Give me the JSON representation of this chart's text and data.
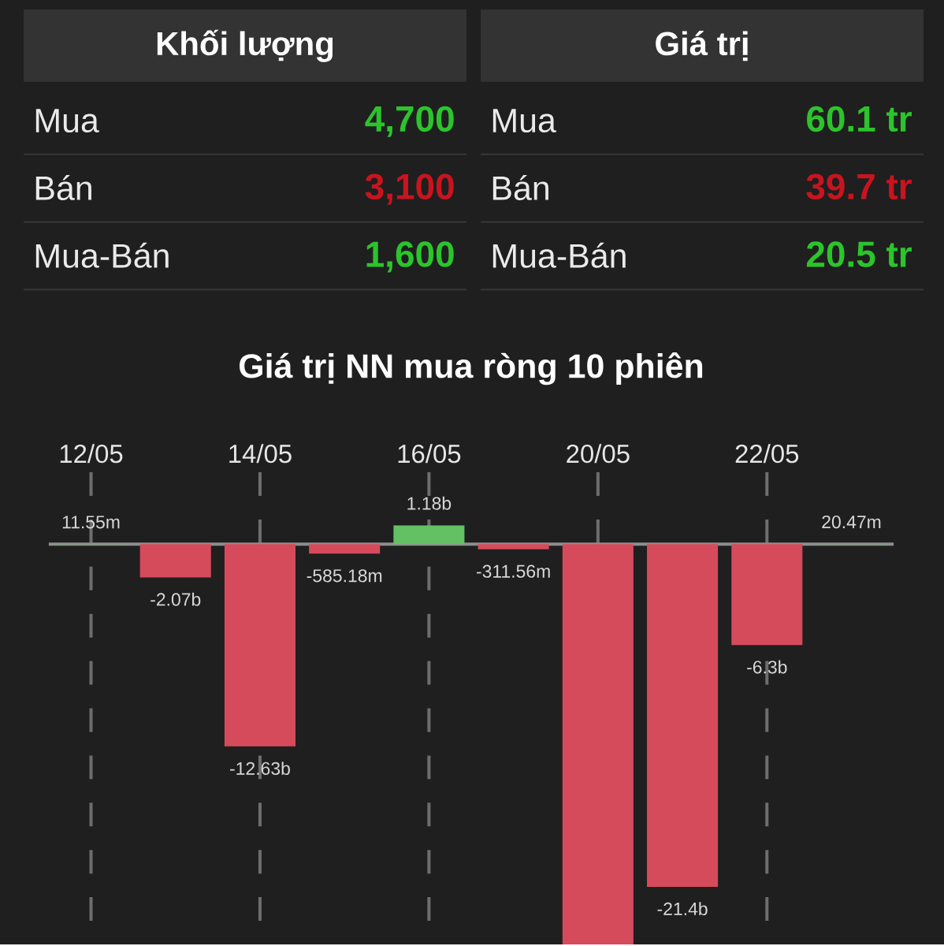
{
  "chart_data": [
    {
      "type": "other",
      "title": "Khối lượng",
      "categories": [
        "Mua",
        "Bán",
        "Mua-Bán"
      ],
      "value_labels": [
        "4,700",
        "3,100",
        "1,600"
      ],
      "colors": [
        "#2cc42c",
        "#c8141e",
        "#2cc42c"
      ]
    },
    {
      "type": "other",
      "title": "Giá trị",
      "categories": [
        "Mua",
        "Bán",
        "Mua-Bán"
      ],
      "value_labels": [
        "60.1 tr",
        "39.7 tr",
        "20.5 tr"
      ],
      "colors": [
        "#2cc42c",
        "#c8141e",
        "#2cc42c"
      ]
    },
    {
      "type": "bar",
      "title": "Giá trị NN mua ròng 10 phiên",
      "categories": [
        "12/05",
        null,
        "14/05",
        null,
        "16/05",
        null,
        "20/05",
        null,
        "22/05",
        null
      ],
      "values": [
        11550000,
        -2070000000,
        -12630000000,
        -585180000,
        1180000000,
        -311560000,
        -25000000000,
        -21400000000,
        -6300000000,
        20470000
      ],
      "colors": [
        "#63c163",
        "#d64b5c",
        "#d64b5c",
        "#d64b5c",
        "#63c163",
        "#d64b5c",
        "#d64b5c",
        "#d64b5c",
        "#d64b5c",
        "#63c163"
      ],
      "value_labels": [
        "11.55m",
        "-2.07b",
        "-12.63b",
        "-585.18m",
        "1.18b",
        "-311.56m",
        null,
        "-21.4b",
        "-6.3b",
        "20.47m"
      ],
      "ylim": [
        -25000000000,
        4500000000
      ],
      "grid": "x"
    }
  ]
}
